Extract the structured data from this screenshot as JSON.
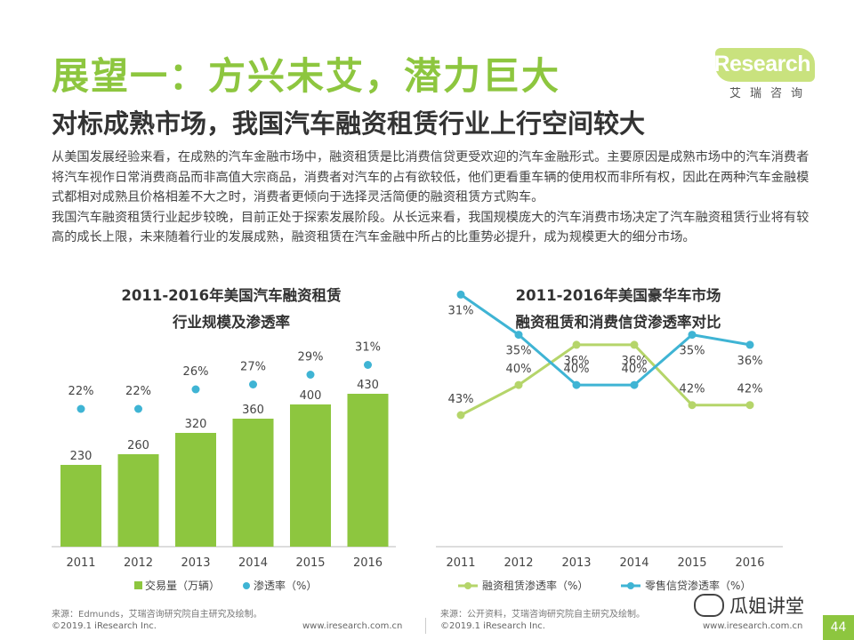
{
  "header": {
    "main_title": "展望一：方兴未艾，潜力巨大",
    "subtitle": "对标成熟市场，我国汽车融资租赁行业上行空间较大"
  },
  "logo": {
    "text": "iResearch",
    "cn": "艾瑞咨询"
  },
  "body": {
    "paragraph1": "从美国发展经验来看，在成熟的汽车金融市场中，融资租赁是比消费信贷更受欢迎的汽车金融形式。主要原因是成熟市场中的汽车消费者将汽车视作日常消费商品而非高值大宗商品，消费者对汽车的占有欲较低，他们更看重车辆的使用权而非所有权，因此在两种汽车金融模式都相对成熟且价格相差不大之时，消费者更倾向于选择灵活简便的融资租赁方式购车。",
    "paragraph2": "我国汽车融资租赁行业起步较晚，目前正处于探索发展阶段。从长远来看，我国规模庞大的汽车消费市场决定了汽车融资租赁行业将有较高的成长上限，未来随着行业的发展成熟，融资租赁在汽车金融中所占的比重势必提升，成为规模更大的细分市场。"
  },
  "chart_data": [
    {
      "type": "bar",
      "title_line1": "2011-2016年美国汽车融资租赁",
      "title_line2": "行业规模及渗透率",
      "categories": [
        "2011",
        "2012",
        "2013",
        "2014",
        "2015",
        "2016"
      ],
      "series": [
        {
          "name": "交易量（万辆）",
          "kind": "bar",
          "values": [
            230,
            260,
            320,
            360,
            400,
            430
          ],
          "labels": [
            "230",
            "260",
            "320",
            "360",
            "400",
            "430"
          ]
        },
        {
          "name": "渗透率（%）",
          "kind": "dot",
          "values": [
            22,
            22,
            26,
            27,
            29,
            31
          ],
          "labels": [
            "22%",
            "22%",
            "26%",
            "27%",
            "29%",
            "31%"
          ]
        }
      ],
      "colors": {
        "bar": "#8dc63f",
        "dot": "#3fb4d4"
      },
      "source": "来源：Edmunds，艾瑞咨询研究院自主研究及绘制。"
    },
    {
      "type": "line",
      "title_line1": "2011-2016年美国豪华车市场",
      "title_line2": "融资租赁和消费信贷渗透率对比",
      "categories": [
        "2011",
        "2012",
        "2013",
        "2014",
        "2015",
        "2016"
      ],
      "series": [
        {
          "name": "融资租赁渗透率（%）",
          "values": [
            43,
            40,
            36,
            36,
            42,
            42
          ],
          "labels": [
            "43%",
            "40%",
            "36%",
            "36%",
            "42%",
            "42%"
          ]
        },
        {
          "name": "零售信贷渗透率（%）",
          "values": [
            31,
            35,
            40,
            40,
            35,
            36
          ],
          "labels": [
            "31%",
            "35%",
            "40%",
            "40%",
            "35%",
            "36%"
          ]
        }
      ],
      "colors": {
        "lease": "#b5d56a",
        "credit": "#3fb4d4"
      },
      "source": "来源：公开资料，艾瑞咨询研究院自主研究及绘制。"
    }
  ],
  "footer": {
    "copyright_left": "©2019.1 iResearch Inc.",
    "url_left": "www.iresearch.com.cn",
    "copyright_right": "©2019.1 iResearch Inc.",
    "url_right": "www.iresearch.com.cn",
    "watermark": "瓜姐讲堂",
    "page_number": "44"
  }
}
